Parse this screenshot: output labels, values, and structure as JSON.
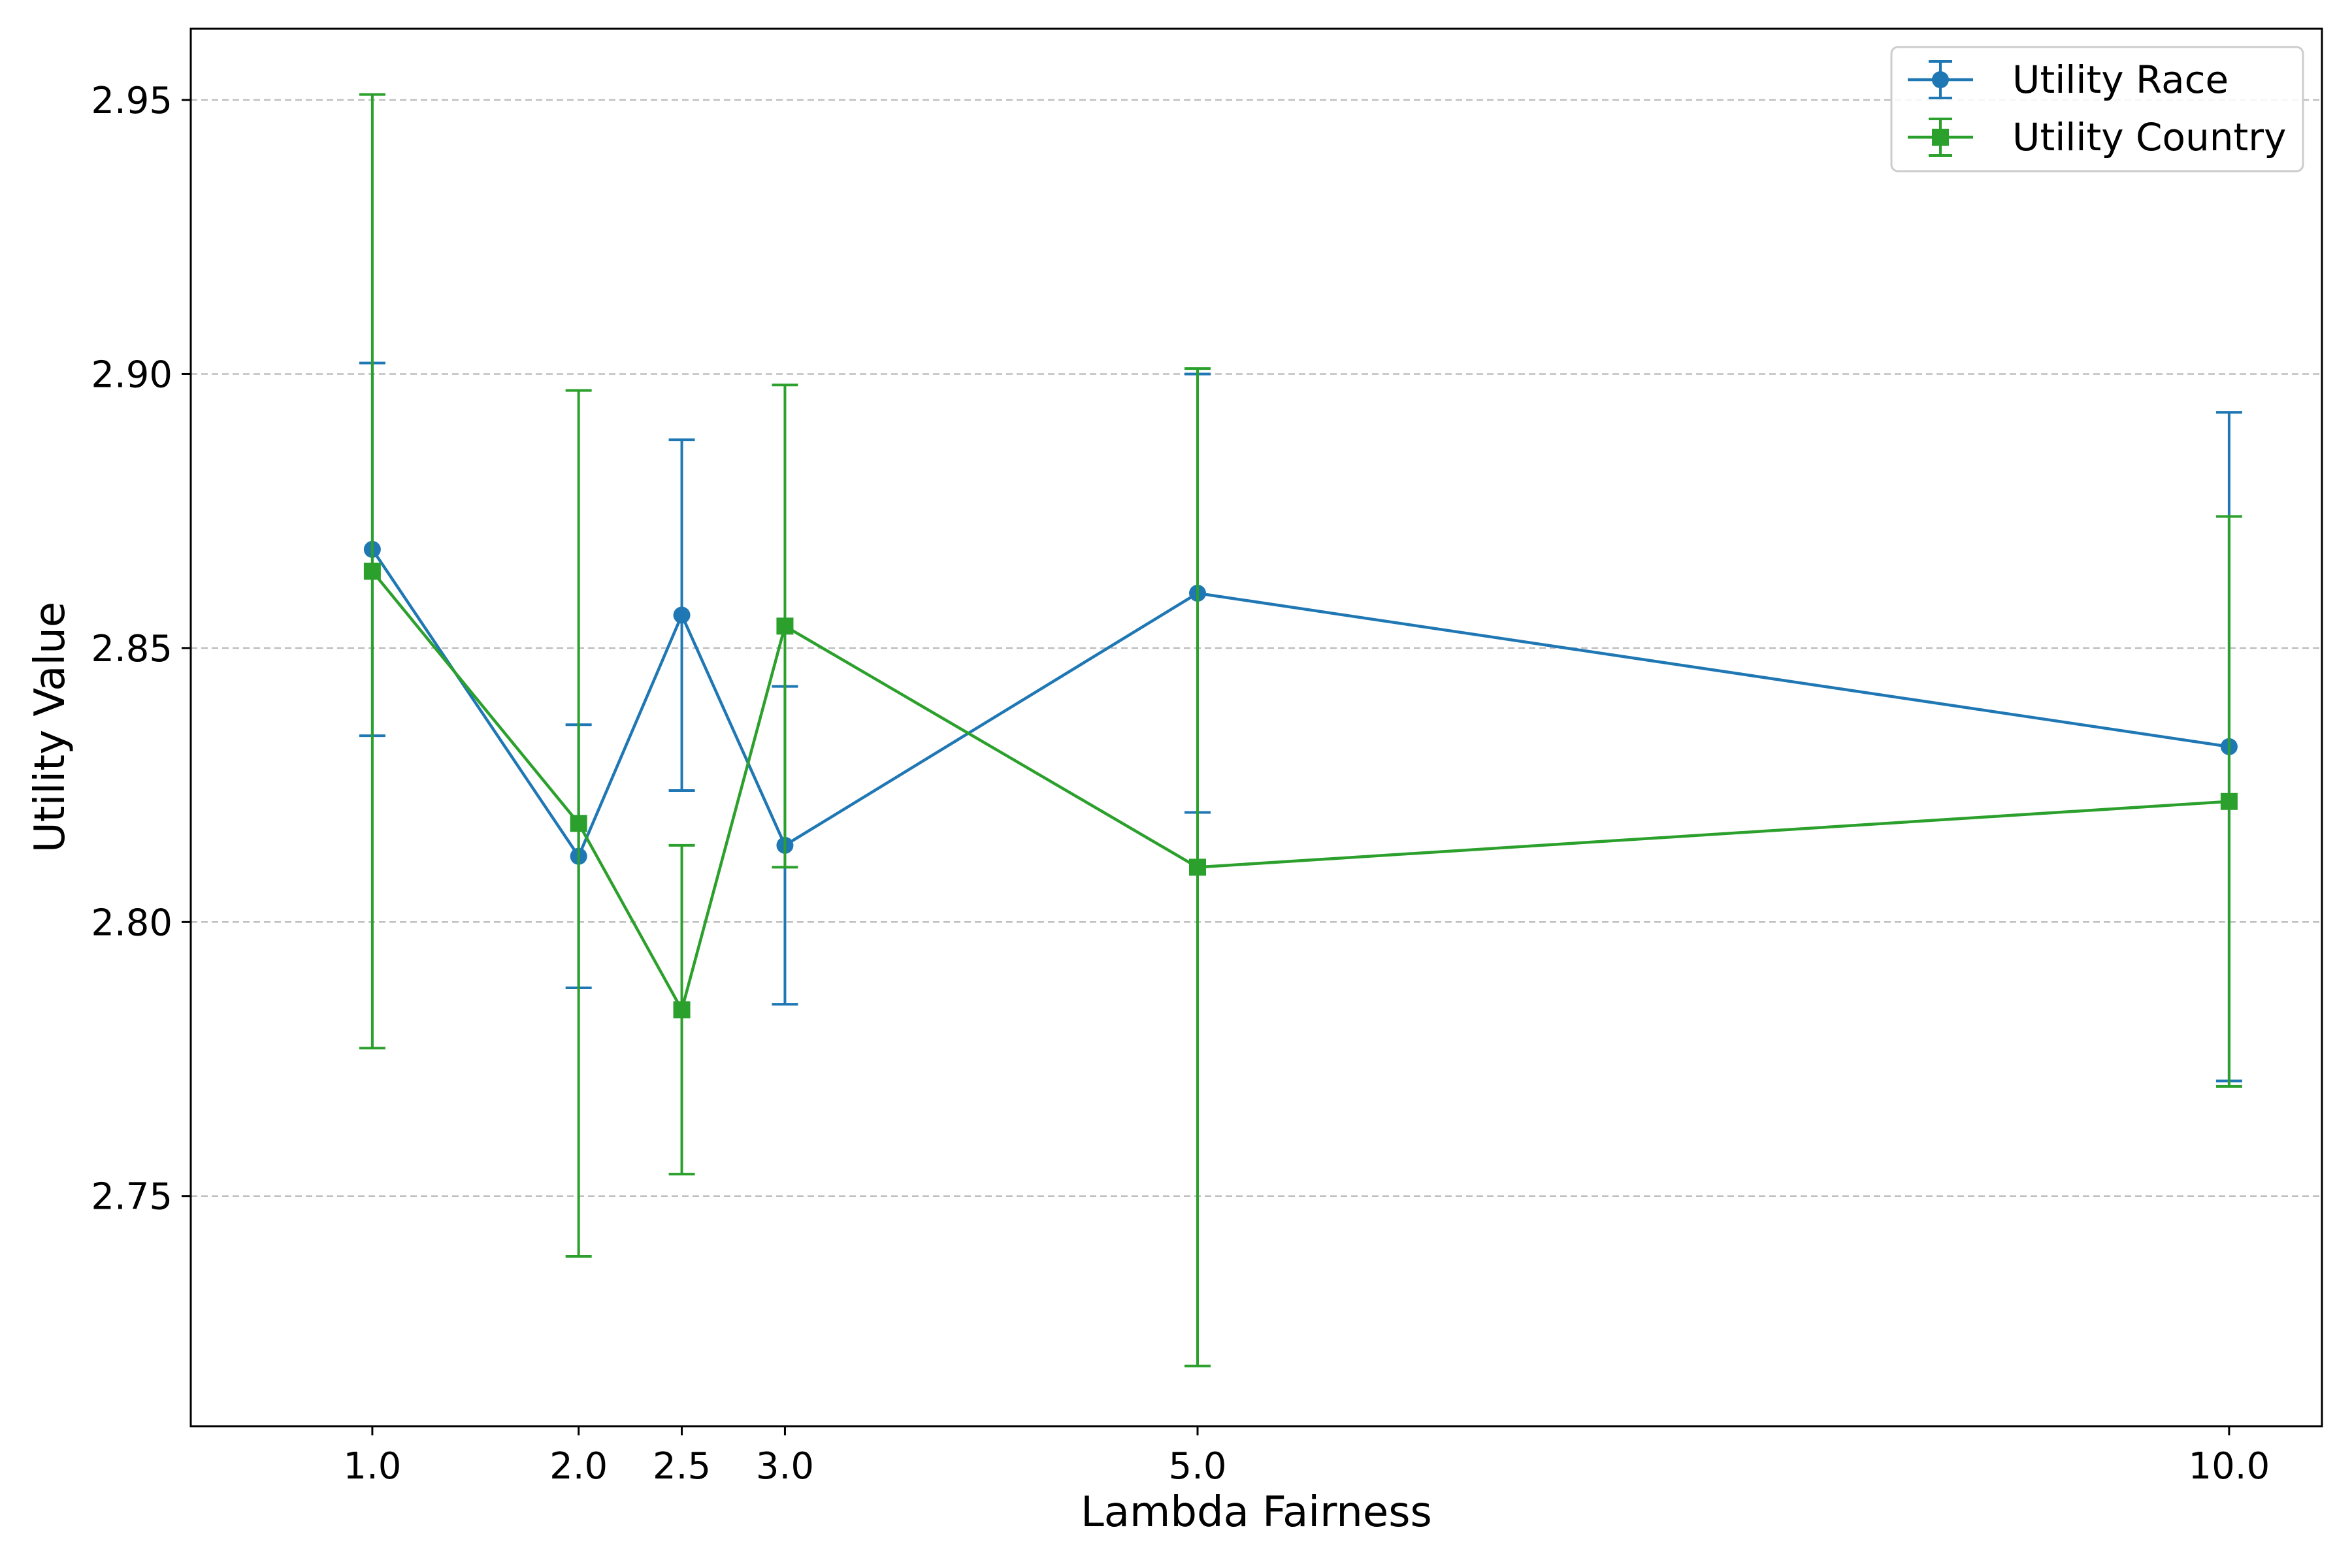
{
  "chart_data": {
    "type": "line",
    "xlabel": "Lambda Fairness",
    "ylabel": "Utility Value",
    "x": [
      1.0,
      2.0,
      2.5,
      3.0,
      5.0,
      10.0
    ],
    "x_tick_labels": [
      "1.0",
      "2.0",
      "2.5",
      "3.0",
      "5.0",
      "10.0"
    ],
    "y_ticks": [
      2.75,
      2.8,
      2.85,
      2.9,
      2.95
    ],
    "y_tick_labels": [
      "2.75",
      "2.80",
      "2.85",
      "2.90",
      "2.95"
    ],
    "xlim": [
      0.12,
      10.45
    ],
    "ylim": [
      2.708,
      2.963
    ],
    "grid": "horizontal dashed",
    "legend_position": "top-right",
    "series": [
      {
        "name": "Utility Race",
        "color": "#1f77b4",
        "marker": "circle",
        "values": [
          2.868,
          2.812,
          2.856,
          2.814,
          2.86,
          2.832
        ],
        "error": [
          0.034,
          0.024,
          0.032,
          0.029,
          0.04,
          0.061
        ]
      },
      {
        "name": "Utility Country",
        "color": "#2ca02c",
        "marker": "square",
        "values": [
          2.864,
          2.818,
          2.784,
          2.854,
          2.81,
          2.822
        ],
        "error": [
          0.087,
          0.079,
          0.03,
          0.044,
          0.091,
          0.052
        ]
      }
    ]
  }
}
